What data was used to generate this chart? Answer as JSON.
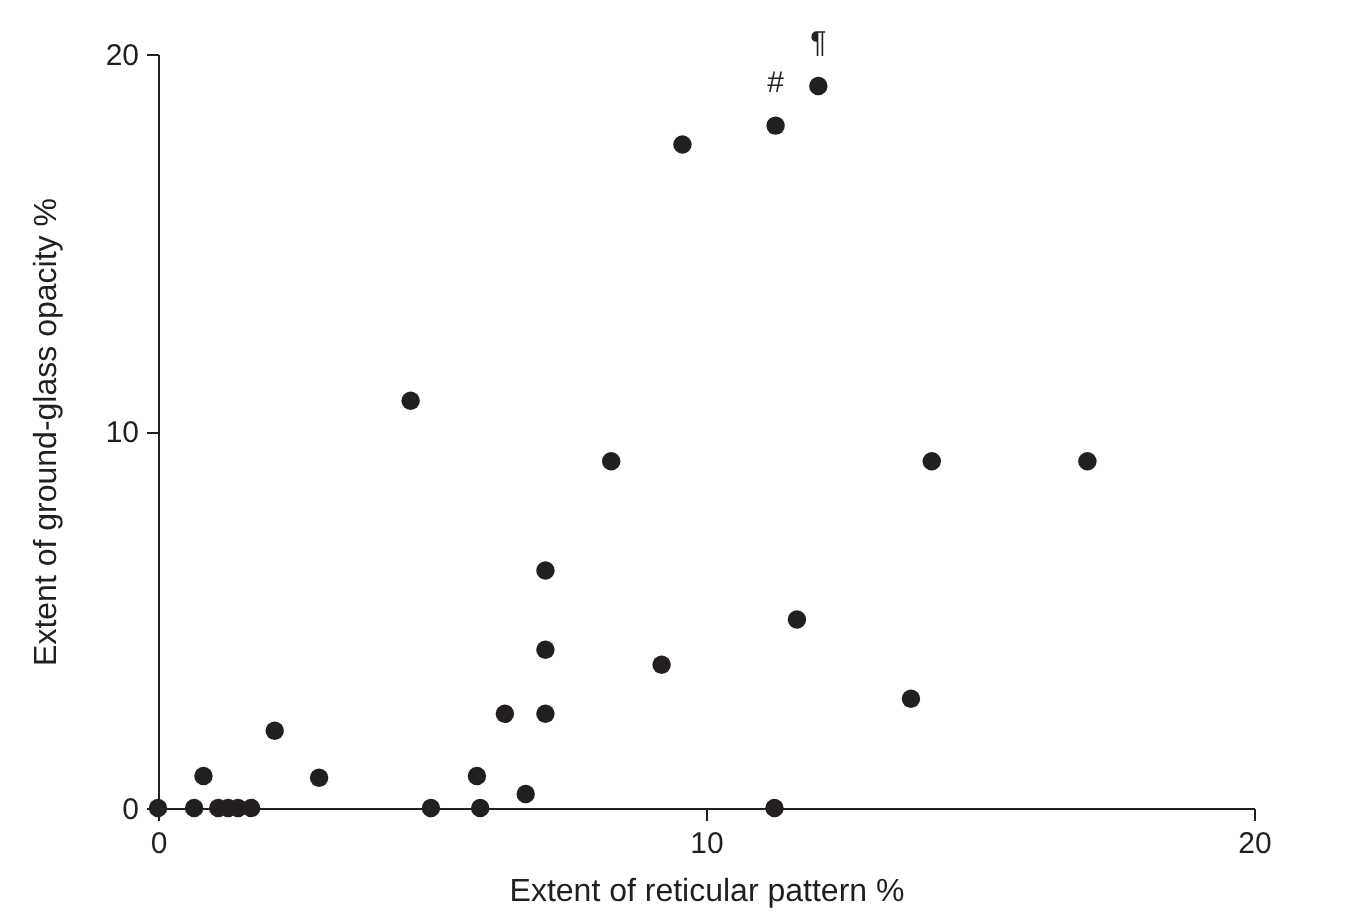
{
  "chart_data": {
    "type": "scatter",
    "xlabel": "Extent of reticular pattern  %",
    "ylabel": "Extent of ground-glass opacity  %",
    "x": [
      0,
      0.66,
      0.83,
      1.1,
      1.28,
      1.46,
      1.7,
      2.13,
      2.94,
      4.61,
      4.98,
      5.82,
      5.88,
      6.33,
      6.71,
      7.07,
      7.07,
      7.07,
      8.27,
      9.19,
      9.57,
      11.25,
      11.27,
      11.66,
      12.05,
      13.74,
      14.12,
      16.96
    ],
    "series": [
      {
        "color": "#231f20",
        "values": [
          0,
          0,
          0.85,
          0,
          0,
          0,
          0,
          2.05,
          0.8,
          10.8,
          0,
          0.85,
          0,
          2.5,
          0.37,
          2.5,
          4.2,
          6.3,
          9.2,
          3.8,
          17.6,
          0,
          18.1,
          5.0,
          19.15,
          2.9,
          9.2,
          9.2
        ]
      }
    ],
    "xlim": [
      0,
      20
    ],
    "ylim": [
      0,
      20
    ],
    "xticks": [
      0,
      10,
      20
    ],
    "yticks": [
      0,
      10,
      20
    ],
    "marker": "circle",
    "grid": false,
    "legend": false,
    "annotations": [
      {
        "text": "#",
        "x": 11.27,
        "y": 18.1
      },
      {
        "text": "¶",
        "x": 12.05,
        "y": 19.15
      }
    ]
  }
}
